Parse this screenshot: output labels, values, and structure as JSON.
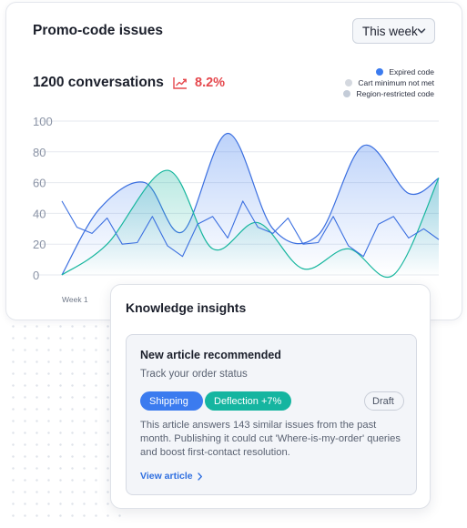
{
  "card": {
    "title": "Promo-code issues",
    "period_selector": {
      "value": "This week",
      "icon": "chevron-down-icon"
    },
    "metric": {
      "conversations": "1200 conversations",
      "change": "8.2%",
      "trend_icon": "trend-up-icon",
      "trend_color": "#e5484d"
    },
    "legend": [
      {
        "label": "Expired code",
        "color": "#3b7bef"
      },
      {
        "label": "Cart minimum not met",
        "color": "#d4d8df"
      },
      {
        "label": "Region-restricted code",
        "color": "#c4ccd8"
      }
    ]
  },
  "chart_data": {
    "type": "line",
    "x": [
      0,
      1,
      2,
      3,
      4,
      5,
      6,
      7,
      8,
      9,
      10,
      11,
      12,
      13,
      14,
      15,
      16,
      17,
      18,
      19,
      20,
      21,
      22,
      23,
      24,
      25
    ],
    "x_tick_labels": [
      "Week 1"
    ],
    "ylim": [
      0,
      100
    ],
    "yticks": [
      0,
      20,
      40,
      60,
      80,
      100
    ],
    "grid": true,
    "legend_position": "top-right",
    "series": [
      {
        "name": "Expired code",
        "style": "smooth-area",
        "color": "#3b6fe0",
        "fill": "#3b7bef",
        "points": [
          [
            0,
            0
          ],
          [
            2.5,
            43
          ],
          [
            5.5,
            60
          ],
          [
            8,
            28
          ],
          [
            11,
            92
          ],
          [
            14,
            30
          ],
          [
            17,
            26
          ],
          [
            20,
            84
          ],
          [
            23,
            53
          ],
          [
            25,
            63
          ]
        ]
      },
      {
        "name": "Cart minimum not met",
        "style": "smooth-area",
        "color": "#17b69e",
        "fill": "#17b69e",
        "points": [
          [
            0,
            0
          ],
          [
            3,
            20
          ],
          [
            7,
            68
          ],
          [
            10,
            17
          ],
          [
            13,
            34
          ],
          [
            16,
            4
          ],
          [
            19,
            17
          ],
          [
            22,
            0
          ],
          [
            25,
            63
          ]
        ]
      },
      {
        "name": "Region-restricted code",
        "style": "polyline",
        "color": "#3b6fe0",
        "values": [
          48,
          31,
          27,
          37,
          20,
          21,
          38,
          19,
          12,
          33,
          38,
          24,
          48,
          31,
          27,
          37,
          20,
          21,
          38,
          19,
          12,
          33,
          38,
          24,
          30,
          23
        ]
      }
    ]
  },
  "insights": {
    "title": "Knowledge insights",
    "recommendation": {
      "title": "New article recommended",
      "subtitle": "Track your order status",
      "tags": {
        "shipping": "Shipping",
        "deflection": "Deflection +7%",
        "status": "Draft"
      },
      "body": "This article answers 143 similar issues from the past month. Publishing it could cut 'Where-is-my-order' queries and boost first-contact resolution.",
      "link": "View article",
      "link_icon": "chevron-right-icon"
    }
  }
}
